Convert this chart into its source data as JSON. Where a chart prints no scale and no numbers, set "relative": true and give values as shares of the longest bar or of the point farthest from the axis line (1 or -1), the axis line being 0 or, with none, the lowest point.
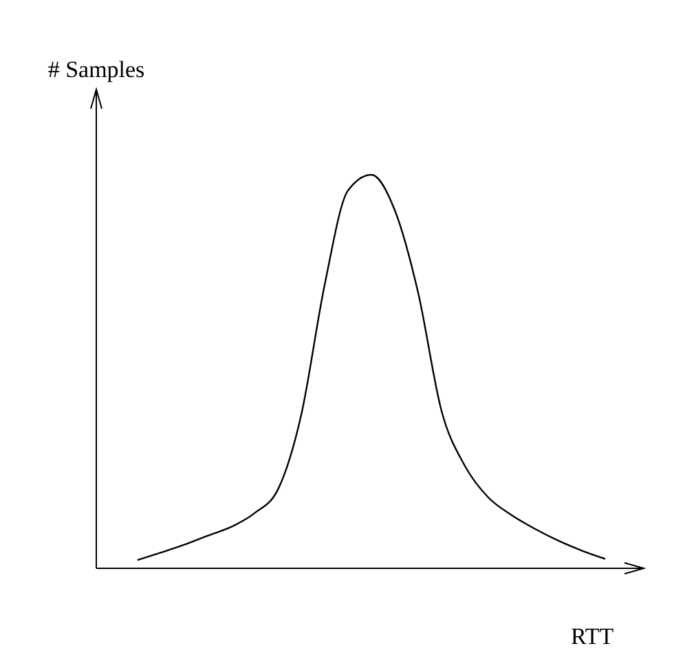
{
  "chart_data": {
    "type": "line",
    "relative": true,
    "xlabel": "RTT",
    "ylabel": "# Samples",
    "color": "#000000",
    "marker": "none",
    "line_style": "solid",
    "categories": [
      null,
      null,
      null,
      null,
      null,
      null,
      null,
      null,
      null,
      null,
      null,
      null,
      null,
      null,
      null,
      null,
      null,
      null,
      null,
      null,
      null
    ],
    "values": [
      0.021,
      0.04,
      0.06,
      0.083,
      0.105,
      0.14,
      0.2,
      0.39,
      0.72,
      0.96,
      1.0,
      0.91,
      0.7,
      0.4,
      0.26,
      0.18,
      0.135,
      0.1,
      0.07,
      0.045,
      0.024
    ]
  }
}
